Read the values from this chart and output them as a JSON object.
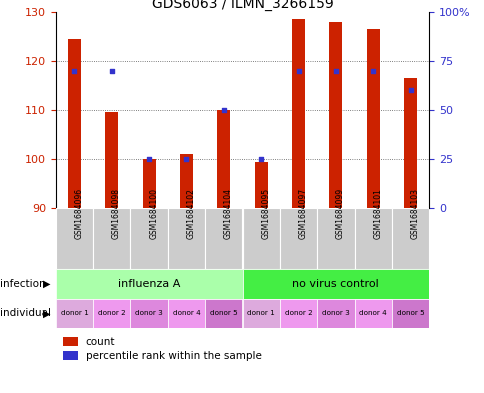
{
  "title": "GDS6063 / ILMN_3266159",
  "samples": [
    "GSM1684096",
    "GSM1684098",
    "GSM1684100",
    "GSM1684102",
    "GSM1684104",
    "GSM1684095",
    "GSM1684097",
    "GSM1684099",
    "GSM1684101",
    "GSM1684103"
  ],
  "counts": [
    124.5,
    109.5,
    100.0,
    101.0,
    110.0,
    99.5,
    128.5,
    128.0,
    126.5,
    116.5
  ],
  "percentiles": [
    70,
    70,
    25,
    25,
    50,
    25,
    70,
    70,
    70,
    60
  ],
  "ylim_left": [
    90,
    130
  ],
  "ylim_right": [
    0,
    100
  ],
  "yticks_left": [
    90,
    100,
    110,
    120,
    130
  ],
  "yticks_right": [
    0,
    25,
    50,
    75,
    100
  ],
  "ytick_right_labels": [
    "0",
    "25",
    "50",
    "75",
    "100%"
  ],
  "bar_color": "#cc2200",
  "percentile_color": "#3333cc",
  "grid_color": "#555555",
  "bg_color": "#ffffff",
  "infection_groups": [
    {
      "label": "influenza A",
      "start": 0,
      "end": 5,
      "color": "#aaffaa"
    },
    {
      "label": "no virus control",
      "start": 5,
      "end": 10,
      "color": "#44ee44"
    }
  ],
  "individual_labels": [
    "donor 1",
    "donor 2",
    "donor 3",
    "donor 4",
    "donor 5",
    "donor 1",
    "donor 2",
    "donor 3",
    "donor 4",
    "donor 5"
  ],
  "individual_colors": [
    "#ddaadd",
    "#ee99ee",
    "#dd88dd",
    "#ee99ee",
    "#cc77cc",
    "#ddaadd",
    "#ee99ee",
    "#dd88dd",
    "#ee99ee",
    "#cc77cc"
  ],
  "sample_box_color": "#cccccc",
  "tick_label_color": "#cc2200",
  "right_axis_color": "#3333cc",
  "annotation_infection": "infection",
  "annotation_individual": "individual",
  "legend_count": "count",
  "legend_percentile": "percentile rank within the sample",
  "bar_width": 0.35,
  "base_value": 90
}
